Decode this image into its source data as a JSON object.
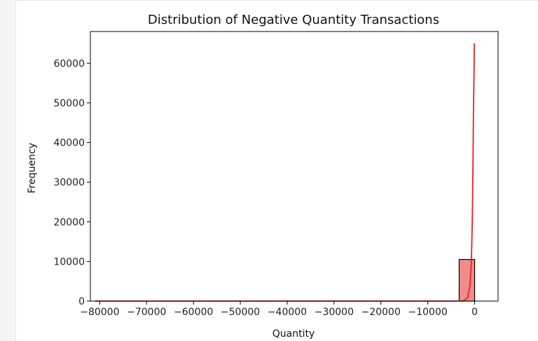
{
  "chart_data": {
    "type": "bar",
    "title": "Distribution of Negative Quantity Transactions",
    "xlabel": "Quantity",
    "ylabel": "Frequency",
    "xlim": [
      -82000,
      5000
    ],
    "ylim": [
      0,
      68000
    ],
    "x_ticks": [
      -80000,
      -70000,
      -60000,
      -50000,
      -40000,
      -30000,
      -20000,
      -10000,
      0
    ],
    "x_tick_labels": [
      "−80000",
      "−70000",
      "−60000",
      "−50000",
      "−40000",
      "−30000",
      "−20000",
      "−10000",
      "0"
    ],
    "y_ticks": [
      0,
      10000,
      20000,
      30000,
      40000,
      50000,
      60000
    ],
    "y_tick_labels": [
      "0",
      "10000",
      "20000",
      "30000",
      "40000",
      "50000",
      "60000"
    ],
    "bins": [
      {
        "x0": -3300,
        "x1": 0,
        "count": 10500
      }
    ],
    "kde_points": [
      [
        -80995,
        0
      ],
      [
        -60000,
        0
      ],
      [
        -40000,
        0
      ],
      [
        -20000,
        0
      ],
      [
        -5000,
        0
      ],
      [
        -2500,
        50
      ],
      [
        -1500,
        800
      ],
      [
        -1000,
        4000
      ],
      [
        -700,
        10000
      ],
      [
        -500,
        20000
      ],
      [
        -350,
        35000
      ],
      [
        -250,
        48000
      ],
      [
        -100,
        60000
      ],
      [
        -74,
        65000
      ]
    ],
    "grid": false,
    "legend": "none",
    "colors": {
      "bar_fill": "#f08080",
      "bar_edge": "#000000",
      "kde_line": "#e8201c",
      "axes": "#000000"
    }
  }
}
